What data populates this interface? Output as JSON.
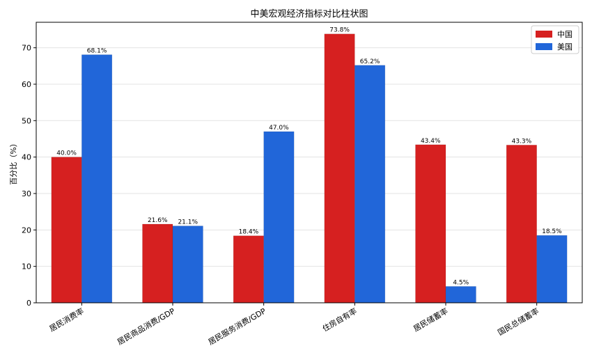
{
  "chart_data": {
    "type": "bar",
    "title": "中美宏观经济指标对比柱状图",
    "xlabel": "",
    "ylabel": "百分比（%）",
    "ylim": [
      0,
      77
    ],
    "yticks": [
      0,
      10,
      20,
      30,
      40,
      50,
      60,
      70
    ],
    "grid": true,
    "legend_position": "top-right",
    "categories": [
      "居民消费率",
      "居民商品消费/GDP",
      "居民服务消费/GDP",
      "住房自有率",
      "居民储蓄率",
      "国民总储蓄率"
    ],
    "series": [
      {
        "name": "中国",
        "color": "#d62020",
        "values": [
          40.0,
          21.6,
          18.4,
          73.8,
          43.4,
          43.3
        ],
        "labels": [
          "40.0%",
          "21.6%",
          "18.4%",
          "73.8%",
          "43.4%",
          "43.3%"
        ]
      },
      {
        "name": "美国",
        "color": "#2166d9",
        "values": [
          68.1,
          21.1,
          47.0,
          65.2,
          4.5,
          18.5
        ],
        "labels": [
          "68.1%",
          "21.1%",
          "47.0%",
          "65.2%",
          "4.5%",
          "18.5%"
        ]
      }
    ]
  }
}
